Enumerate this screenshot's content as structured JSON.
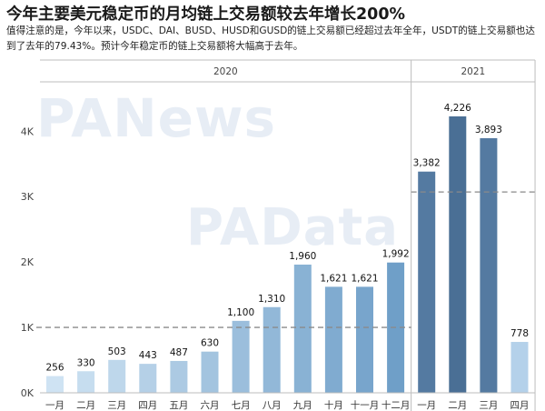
{
  "header": {
    "title": "今年主要美元稳定币的月均链上交易额较去年增长200%",
    "subtitle": "值得注意的是，今年以来，USDC、DAI、BUSD、HUSD和GUSD的链上交易额已经超过去年全年，USDT的链上交易额也达到了去年的79.43%。预计今年稳定币的链上交易额将大幅高于去年。"
  },
  "watermarks": [
    "PANews",
    "PAData"
  ],
  "chart_data": {
    "type": "bar",
    "title": "今年主要美元稳定币的月均链上交易额较去年增长200%",
    "groups": [
      {
        "year": "2020",
        "categories": [
          "一月",
          "二月",
          "三月",
          "四月",
          "五月",
          "六月",
          "七月",
          "八月",
          "九月",
          "十月",
          "十一月",
          "十二月"
        ],
        "values": [
          256,
          330,
          503,
          443,
          487,
          630,
          1100,
          1310,
          1960,
          1621,
          1621,
          1992
        ],
        "avg": 1000
      },
      {
        "year": "2021",
        "categories": [
          "一月",
          "二月",
          "三月",
          "四月"
        ],
        "values": [
          3382,
          4226,
          3893,
          778
        ],
        "avg": 3070
      }
    ],
    "value_labels": [
      "256",
      "330",
      "503",
      "443",
      "487",
      "630",
      "1,100",
      "1,310",
      "1,960",
      "1,621",
      "1,621",
      "1,992",
      "3,382",
      "4,226",
      "3,893",
      "778"
    ],
    "yticks": [
      0,
      1000,
      2000,
      3000,
      4000
    ],
    "ytick_labels": [
      "0K",
      "1K",
      "2K",
      "3K",
      "4K"
    ],
    "ylim": [
      0,
      4450
    ],
    "grid": false,
    "reference_lines": "dashed gray monthly average per year",
    "colors": {
      "ramp_2020": [
        "#cfe3f3",
        "#6f9fc8"
      ],
      "ramp_2021": [
        "#4a6f95",
        "#b4d1ea"
      ],
      "avg_line": "#8a8a8a",
      "axis": "#bdbdbd"
    }
  }
}
